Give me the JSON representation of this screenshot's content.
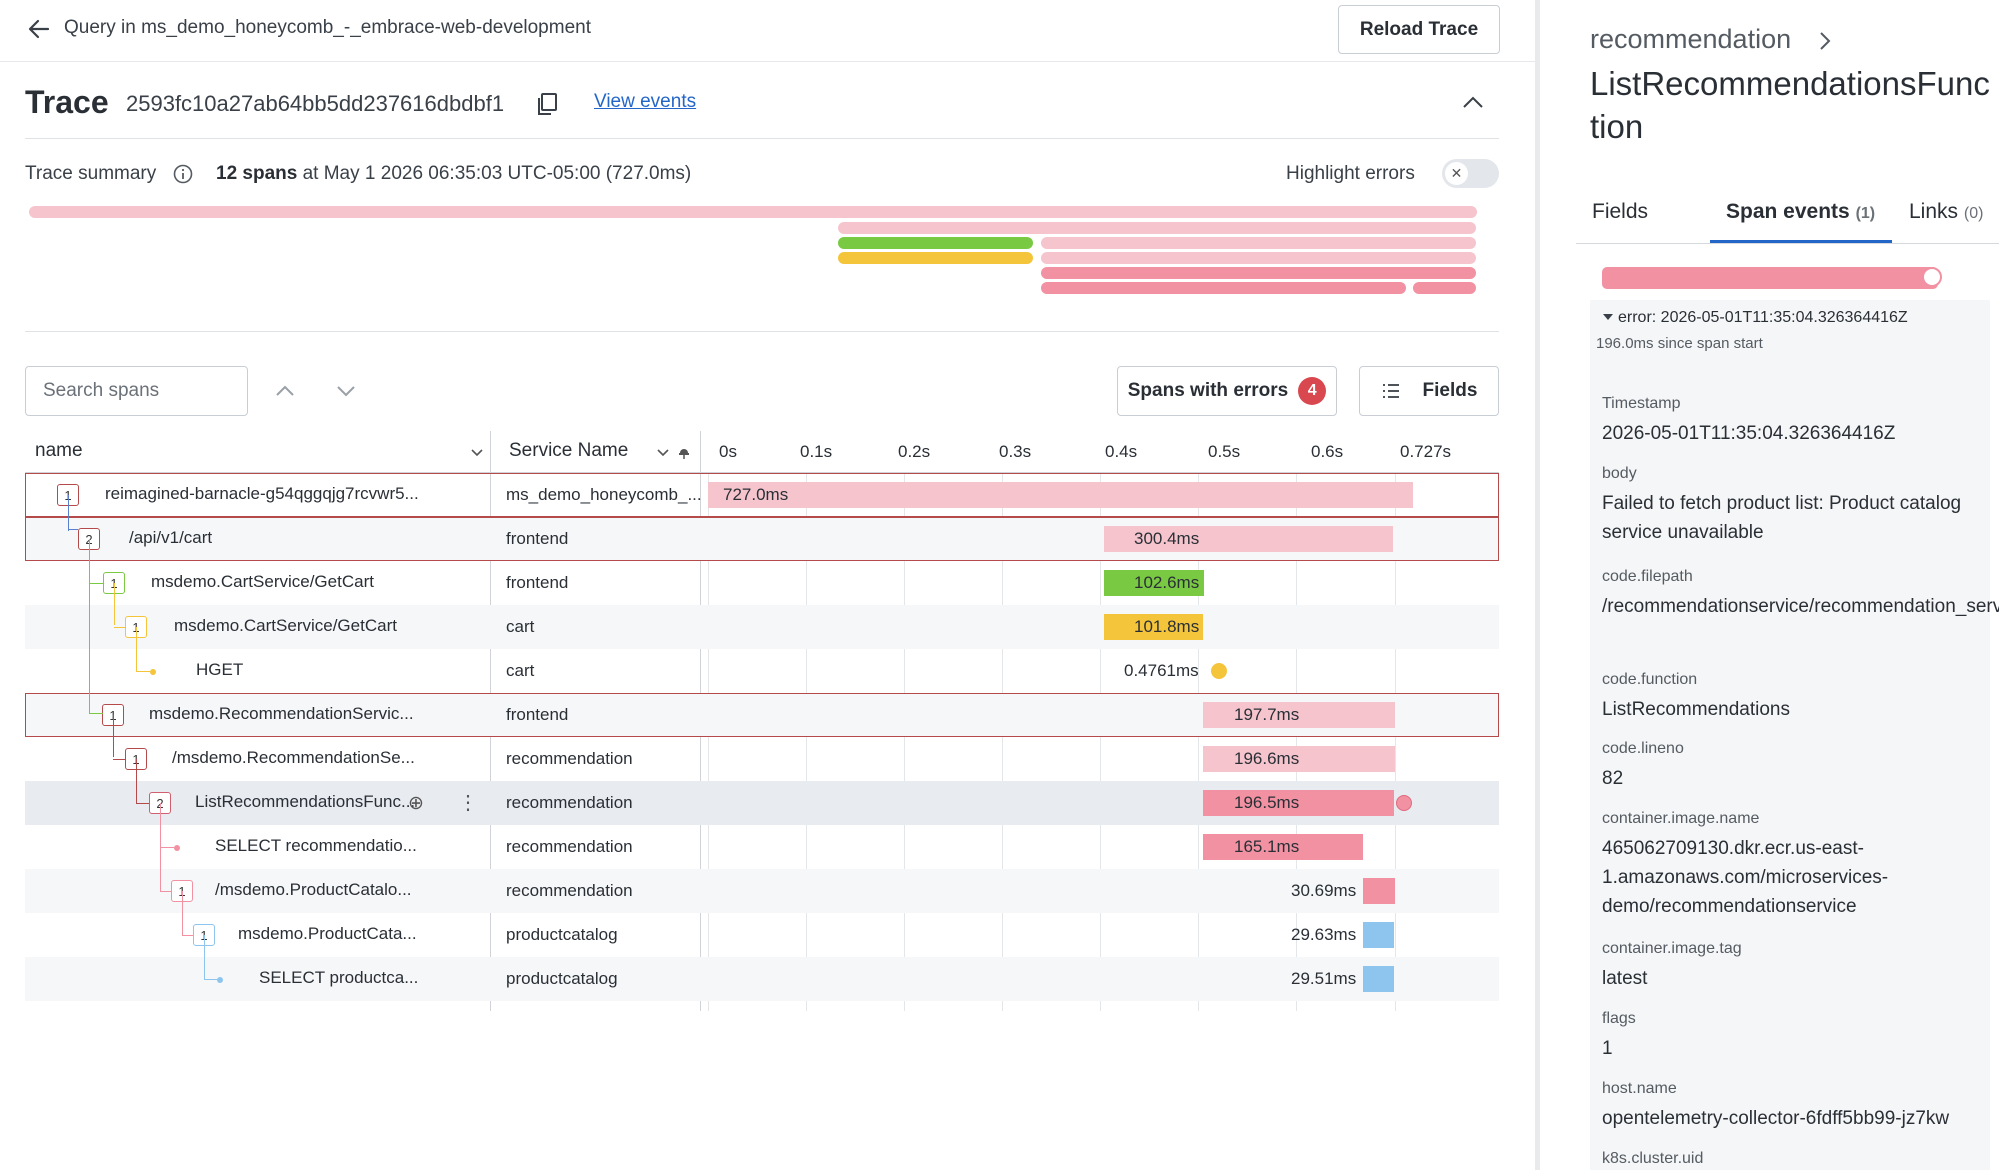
{
  "topbar": {
    "breadcrumb": "Query in ms_demo_honeycomb_-_embrace-web-development",
    "reload_label": "Reload Trace"
  },
  "trace": {
    "title": "Trace",
    "id": "2593fc10a27ab64bb5dd237616dbdbf1",
    "view_events": "View events"
  },
  "summary": {
    "label": "Trace summary",
    "spans_count": "12 spans",
    "spans_rest": " at May 1 2026 06:35:03 UTC-05:00 (727.0ms)",
    "highlight_label": "Highlight errors",
    "highlight_on": false
  },
  "toolbar": {
    "search_placeholder": "Search spans",
    "errors_label": "Spans with errors",
    "errors_count": "4",
    "fields_label": "Fields"
  },
  "table": {
    "col_name": "name",
    "col_service": "Service Name",
    "ticks": [
      "0s",
      "0.1s",
      "0.2s",
      "0.3s",
      "0.4s",
      "0.5s",
      "0.6s",
      "0.727s"
    ],
    "rows": [
      {
        "name": "reimagined-barnacle-g54qggqjg7rcvwr5...",
        "service": "ms_demo_honeycomb_...",
        "duration": "727.0ms",
        "children": "1"
      },
      {
        "name": "/api/v1/cart",
        "service": "frontend",
        "duration": "300.4ms",
        "children": "2"
      },
      {
        "name": "msdemo.CartService/GetCart",
        "service": "frontend",
        "duration": "102.6ms",
        "children": "1"
      },
      {
        "name": "msdemo.CartService/GetCart",
        "service": "cart",
        "duration": "101.8ms",
        "children": "1"
      },
      {
        "name": "HGET",
        "service": "cart",
        "duration": "0.4761ms",
        "children": ""
      },
      {
        "name": "msdemo.RecommendationServic...",
        "service": "frontend",
        "duration": "197.7ms",
        "children": "1"
      },
      {
        "name": "/msdemo.RecommendationSe...",
        "service": "recommendation",
        "duration": "196.6ms",
        "children": "1"
      },
      {
        "name": "ListRecommendationsFunc...",
        "service": "recommendation",
        "duration": "196.5ms",
        "children": "2"
      },
      {
        "name": "SELECT recommendatio...",
        "service": "recommendation",
        "duration": "165.1ms",
        "children": ""
      },
      {
        "name": "/msdemo.ProductCatalo...",
        "service": "recommendation",
        "duration": "30.69ms",
        "children": "1"
      },
      {
        "name": "msdemo.ProductCata...",
        "service": "productcatalog",
        "duration": "29.63ms",
        "children": "1"
      },
      {
        "name": "SELECT productca...",
        "service": "productcatalog",
        "duration": "29.51ms",
        "children": ""
      }
    ]
  },
  "detail": {
    "service": "recommendation",
    "span_name": "ListRecommendationsFunction",
    "tabs": [
      {
        "label": "Fields",
        "count": ""
      },
      {
        "label": "Span events",
        "count": "(1)"
      },
      {
        "label": "Links",
        "count": "(0)"
      }
    ],
    "event_title": "error: 2026-05-01T11:35:04.326364416Z",
    "event_sub": "196.0ms since span start",
    "fields": [
      {
        "key": "Timestamp",
        "value": "2026-05-01T11:35:04.326364416Z"
      },
      {
        "key": "body",
        "value": "Failed to fetch product list: Product catalog service unavailable"
      },
      {
        "key": "code.filepath",
        "value": "/recommendationservice/recommendation_server.py"
      },
      {
        "key": "code.function",
        "value": "ListRecommendations"
      },
      {
        "key": "code.lineno",
        "value": "82"
      },
      {
        "key": "container.image.name",
        "value": "465062709130.dkr.ecr.us-east-1.amazonaws.com/microservices-demo/recommendationservice"
      },
      {
        "key": "container.image.tag",
        "value": "latest"
      },
      {
        "key": "flags",
        "value": "1"
      },
      {
        "key": "host.name",
        "value": "opentelemetry-collector-6fdff5bb99-jz7kw"
      },
      {
        "key": "k8s.cluster.uid",
        "value": ""
      }
    ]
  },
  "colors": {
    "error_pink": "#f5c4cd",
    "error_strong": "#f191a2",
    "green": "#7ac943",
    "yellow": "#f4c43a",
    "blue": "#8ec5ef",
    "accent": "#2466c8"
  }
}
